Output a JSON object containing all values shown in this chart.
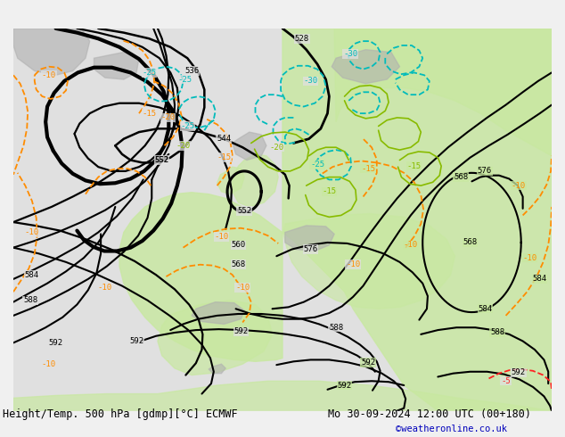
{
  "title_left": "Height/Temp. 500 hPa [gdmp][°C] ECMWF",
  "title_right": "Mo 30-09-2024 12:00 UTC (00+180)",
  "watermark": "©weatheronline.co.uk",
  "bg_ocean": "#e8e8e8",
  "bg_land_green": "#c8e8a0",
  "bg_land_gray": "#b8b8b8",
  "title_font_size": 8.5,
  "watermark_color": "#0000bb",
  "watermark_font_size": 7.5
}
